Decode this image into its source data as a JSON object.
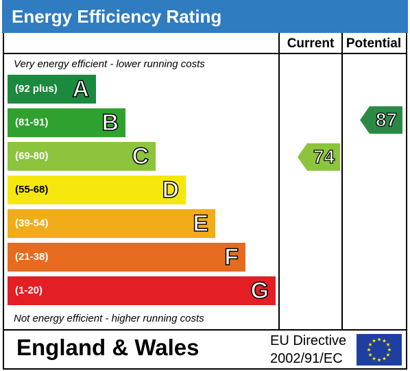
{
  "title": "Energy Efficiency Rating",
  "columns": {
    "current": "Current",
    "potential": "Potential"
  },
  "captions": {
    "top": "Very energy efficient - lower running costs",
    "bottom": "Not energy efficient - higher running costs"
  },
  "bands": [
    {
      "letter": "A",
      "range": "(92 plus)",
      "color": "#1b8a3e"
    },
    {
      "letter": "B",
      "range": "(81-91)",
      "color": "#2fa12e"
    },
    {
      "letter": "C",
      "range": "(69-80)",
      "color": "#8cc43d"
    },
    {
      "letter": "D",
      "range": "(55-68)",
      "color": "#f5e70c"
    },
    {
      "letter": "E",
      "range": "(39-54)",
      "color": "#f2ac1a"
    },
    {
      "letter": "F",
      "range": "(21-38)",
      "color": "#e66b1e"
    },
    {
      "letter": "G",
      "range": "(1-20)",
      "color": "#e31e25"
    }
  ],
  "current": {
    "value": "74",
    "color": "#8cc43d"
  },
  "potential": {
    "value": "87",
    "color": "#2a8a45"
  },
  "footer": {
    "region": "England & Wales",
    "directive_line1": "EU Directive",
    "directive_line2": "2002/91/EC"
  },
  "colors": {
    "title_bar": "#2f7cc0",
    "flag_blue": "#1f3fa0",
    "flag_star": "#ffe600"
  }
}
